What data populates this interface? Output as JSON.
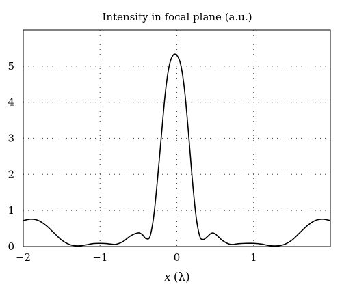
{
  "chart_data": {
    "type": "line",
    "title": "Intensity in focal plane (a.u.)",
    "xlabel_var": "x",
    "xlabel_unit": "(λ)",
    "ylabel": "",
    "xlim": [
      -2,
      2
    ],
    "ylim": [
      0,
      6
    ],
    "grid": true,
    "legend": "none",
    "x_ticks": [
      -2,
      -1,
      0,
      1
    ],
    "x_tick_labels": [
      "−2",
      "−1",
      "0",
      "1"
    ],
    "y_ticks": [
      0,
      1,
      2,
      3,
      4,
      5
    ],
    "y_tick_labels": [
      "0",
      "1",
      "2",
      "3",
      "4",
      "5"
    ],
    "series": [
      {
        "line_color": "#000000",
        "x": [
          -2.0,
          -1.9,
          -1.8,
          -1.7,
          -1.6,
          -1.5,
          -1.4,
          -1.3,
          -1.2,
          -1.1,
          -1.0,
          -0.9,
          -0.8,
          -0.7,
          -0.6,
          -0.5,
          -0.45,
          -0.4,
          -0.35,
          -0.3,
          -0.25,
          -0.2,
          -0.15,
          -0.1,
          -0.05,
          0.0,
          0.05,
          0.1,
          0.15,
          0.2,
          0.25,
          0.3,
          0.35,
          0.4,
          0.45,
          0.5,
          0.6,
          0.7,
          0.8,
          0.9,
          1.0,
          1.1,
          1.2,
          1.3,
          1.4,
          1.5,
          1.6,
          1.7,
          1.8,
          1.9,
          2.0
        ],
        "y": [
          0.72,
          0.76,
          0.72,
          0.58,
          0.38,
          0.18,
          0.06,
          0.02,
          0.04,
          0.08,
          0.09,
          0.08,
          0.06,
          0.14,
          0.3,
          0.38,
          0.33,
          0.22,
          0.28,
          0.85,
          1.9,
          3.1,
          4.25,
          5.0,
          5.3,
          5.3,
          5.05,
          4.35,
          3.2,
          1.9,
          0.85,
          0.28,
          0.2,
          0.28,
          0.37,
          0.35,
          0.16,
          0.06,
          0.08,
          0.09,
          0.09,
          0.07,
          0.03,
          0.02,
          0.06,
          0.18,
          0.38,
          0.58,
          0.72,
          0.76,
          0.72
        ]
      }
    ]
  }
}
